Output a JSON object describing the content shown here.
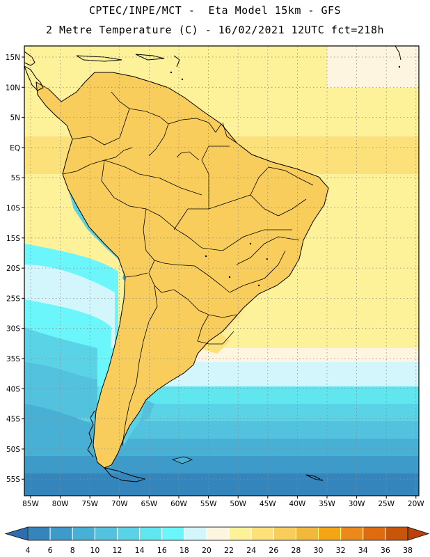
{
  "title": {
    "line1": "CPTEC/INPE/MCT -  Eta Model 15km - GFS",
    "line2": "2 Metre Temperature (C) - 16/02/2021 12UTC fct=218h"
  },
  "axes": {
    "lat_labels": [
      "15N",
      "10N",
      "5N",
      "EQ",
      "5S",
      "10S",
      "15S",
      "20S",
      "25S",
      "30S",
      "35S",
      "40S",
      "45S",
      "50S",
      "55S"
    ],
    "lon_labels": [
      "85W",
      "80W",
      "75W",
      "70W",
      "65W",
      "60W",
      "55W",
      "50W",
      "45W",
      "40W",
      "35W",
      "30W",
      "25W",
      "20W"
    ]
  },
  "colorbar": {
    "labels": [
      "4",
      "6",
      "8",
      "10",
      "12",
      "14",
      "16",
      "18",
      "20",
      "22",
      "24",
      "26",
      "28",
      "30",
      "32",
      "34",
      "36",
      "38"
    ],
    "colors": [
      "#2d6fae",
      "#3585bd",
      "#3d9ac9",
      "#48b0d5",
      "#52c2de",
      "#5bd3e6",
      "#5fe6ee",
      "#6bf6fb",
      "#d3f6fc",
      "#fdf5df",
      "#fdf199",
      "#fce07a",
      "#f8cd5c",
      "#f2b83c",
      "#f3a513",
      "#eb8a1a",
      "#e06a10",
      "#c85509",
      "#b84208"
    ]
  }
}
